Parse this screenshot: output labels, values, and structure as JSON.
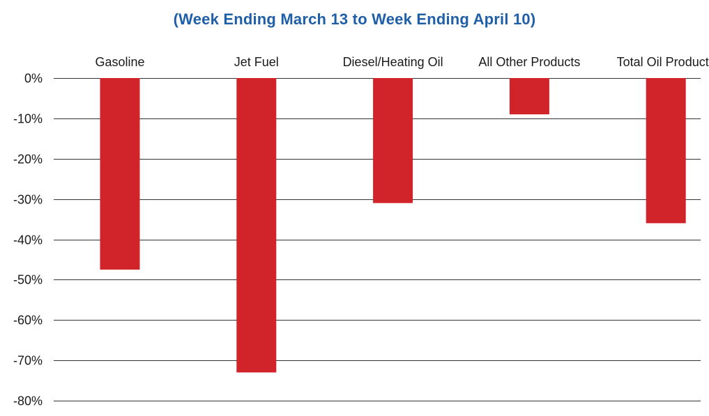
{
  "chart_data": {
    "type": "bar",
    "title": "(Week Ending March 13 to Week Ending April 10)",
    "categories": [
      "Gasoline",
      "Jet Fuel",
      "Diesel/Heating Oil",
      "All Other Products",
      "Total Oil Products"
    ],
    "values": [
      -47.5,
      -73,
      -31,
      -9,
      -36
    ],
    "xlabel": "",
    "ylabel": "",
    "ylim": [
      -80,
      0
    ],
    "yticks": [
      0,
      -10,
      -20,
      -30,
      -40,
      -50,
      -60,
      -70,
      -80
    ],
    "ytick_labels": [
      "0%",
      "-10%",
      "-20%",
      "-30%",
      "-40%",
      "-50%",
      "-60%",
      "-70%",
      "-80%"
    ],
    "category_label_position": "top",
    "grid": true,
    "legend": "none",
    "bar_color": "#d1232a",
    "title_color": "#1f5fa8"
  }
}
